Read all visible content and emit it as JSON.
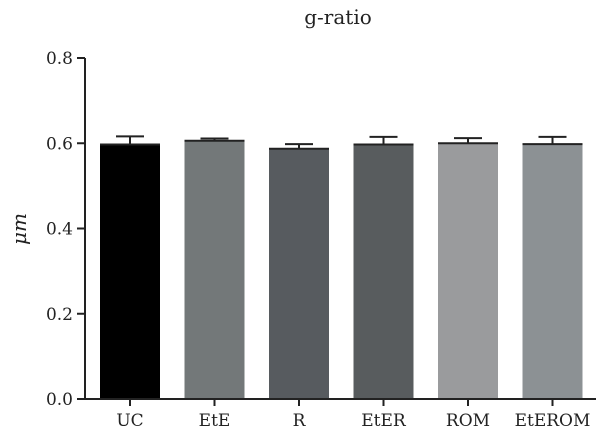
{
  "chart_data": {
    "type": "bar",
    "title": "g-ratio",
    "xlabel": "",
    "ylabel": "μm",
    "ylim": [
      0,
      0.8
    ],
    "yticks": [
      0.0,
      0.2,
      0.4,
      0.6,
      0.8
    ],
    "ytick_labels": [
      "0.0",
      "0.2",
      "0.4",
      "0.6",
      "0.8"
    ],
    "categories": [
      "UC",
      "EtE",
      "R",
      "EtER",
      "ROM",
      "EtEROM"
    ],
    "values": [
      0.597,
      0.606,
      0.587,
      0.597,
      0.6,
      0.598
    ],
    "errors": [
      0.019,
      0.005,
      0.011,
      0.018,
      0.012,
      0.017
    ],
    "colors": [
      "#000000",
      "#737879",
      "#575b5f",
      "#585c5e",
      "#9a9b9d",
      "#8c9194"
    ],
    "grid": false,
    "legend": "none"
  }
}
